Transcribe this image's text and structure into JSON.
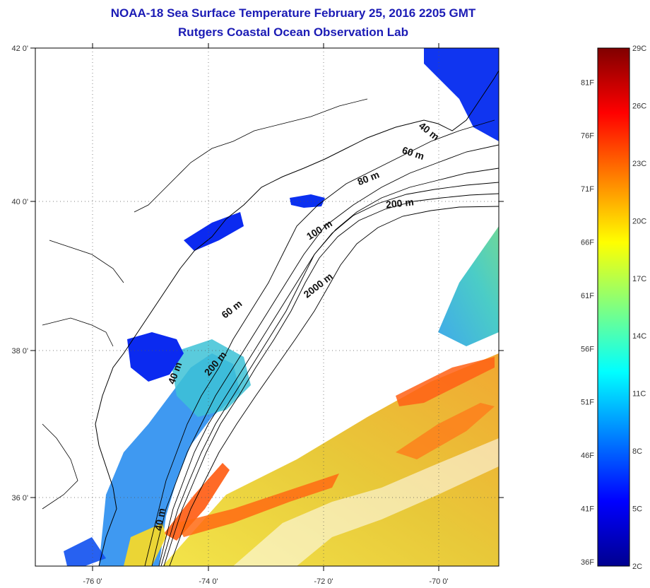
{
  "title": "NOAA-18 Sea Surface Temperature February 25, 2016 2205 GMT",
  "subtitle": "Rutgers Coastal Ocean Observation Lab",
  "map": {
    "lon_ticks": [
      "-76 0'",
      "-74 0'",
      "-72 0'",
      "-70 0'"
    ],
    "lat_ticks": [
      "42 0'",
      "40 0'",
      "38 0'",
      "36 0'"
    ],
    "contour_labels": [
      "40 m",
      "60 m",
      "80 m",
      "200 m",
      "100 m",
      "2000 m",
      "60 m",
      "200 m",
      "40 m",
      "40 m"
    ]
  },
  "colorbar": {
    "celsius_labels": [
      "29C",
      "26C",
      "23C",
      "20C",
      "17C",
      "14C",
      "11C",
      "8C",
      "5C",
      "2C"
    ],
    "fahrenheit_labels": [
      "81F",
      "76F",
      "71F",
      "66F",
      "61F",
      "56F",
      "51F",
      "46F",
      "41F",
      "36F"
    ],
    "colors": [
      "#00008f",
      "#0000ff",
      "#0080ff",
      "#00ffff",
      "#80ff80",
      "#ffff00",
      "#ff8000",
      "#ff0000",
      "#800000"
    ]
  }
}
